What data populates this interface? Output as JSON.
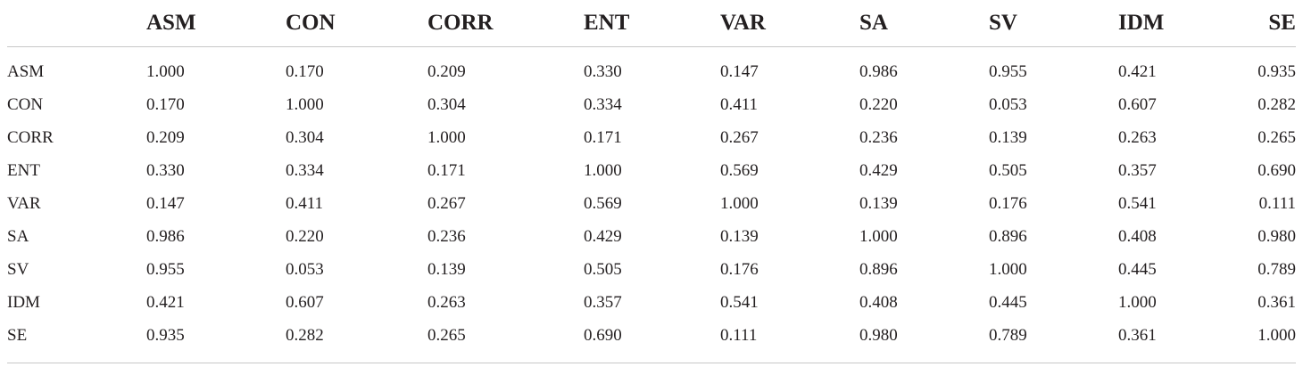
{
  "table": {
    "corner": "",
    "columns": [
      "ASM",
      "CON",
      "CORR",
      "ENT",
      "VAR",
      "SA",
      "SV",
      "IDM",
      "SE"
    ],
    "rows": [
      {
        "label": "ASM",
        "values": [
          "1.000",
          "0.170",
          "0.209",
          "0.330",
          "0.147",
          "0.986",
          "0.955",
          "0.421",
          "0.935"
        ]
      },
      {
        "label": "CON",
        "values": [
          "0.170",
          "1.000",
          "0.304",
          "0.334",
          "0.411",
          "0.220",
          "0.053",
          "0.607",
          "0.282"
        ]
      },
      {
        "label": "CORR",
        "values": [
          "0.209",
          "0.304",
          "1.000",
          "0.171",
          "0.267",
          "0.236",
          "0.139",
          "0.263",
          "0.265"
        ]
      },
      {
        "label": "ENT",
        "values": [
          "0.330",
          "0.334",
          "0.171",
          "1.000",
          "0.569",
          "0.429",
          "0.505",
          "0.357",
          "0.690"
        ]
      },
      {
        "label": "VAR",
        "values": [
          "0.147",
          "0.411",
          "0.267",
          "0.569",
          "1.000",
          "0.139",
          "0.176",
          "0.541",
          "0.111"
        ]
      },
      {
        "label": "SA",
        "values": [
          "0.986",
          "0.220",
          "0.236",
          "0.429",
          "0.139",
          "1.000",
          "0.896",
          "0.408",
          "0.980"
        ]
      },
      {
        "label": "SV",
        "values": [
          "0.955",
          "0.053",
          "0.139",
          "0.505",
          "0.176",
          "0.896",
          "1.000",
          "0.445",
          "0.789"
        ]
      },
      {
        "label": "IDM",
        "values": [
          "0.421",
          "0.607",
          "0.263",
          "0.357",
          "0.541",
          "0.408",
          "0.445",
          "1.000",
          "0.361"
        ]
      },
      {
        "label": "SE",
        "values": [
          "0.935",
          "0.282",
          "0.265",
          "0.690",
          "0.111",
          "0.980",
          "0.789",
          "0.361",
          "1.000"
        ]
      }
    ]
  }
}
